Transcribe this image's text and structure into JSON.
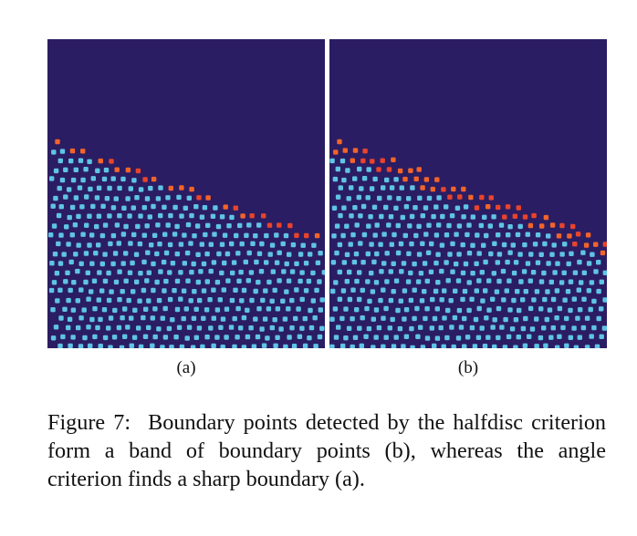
{
  "figure": {
    "panels": [
      {
        "id": "a",
        "label": "(a)",
        "boundary_band": "sharp"
      },
      {
        "id": "b",
        "label": "(b)",
        "boundary_band": "band"
      }
    ],
    "colors": {
      "background": "#2b1d63",
      "interior_points": "#5fc4e6",
      "boundary_points": "#e8442b",
      "boundary_points_alt": "#f2642a"
    },
    "caption": {
      "prefix": "Figure 7:",
      "text": "Boundary points detected by the halfdisc criterion form a band of boundary points (b), whereas the angle criterion finds a sharp boundary (a)."
    }
  }
}
